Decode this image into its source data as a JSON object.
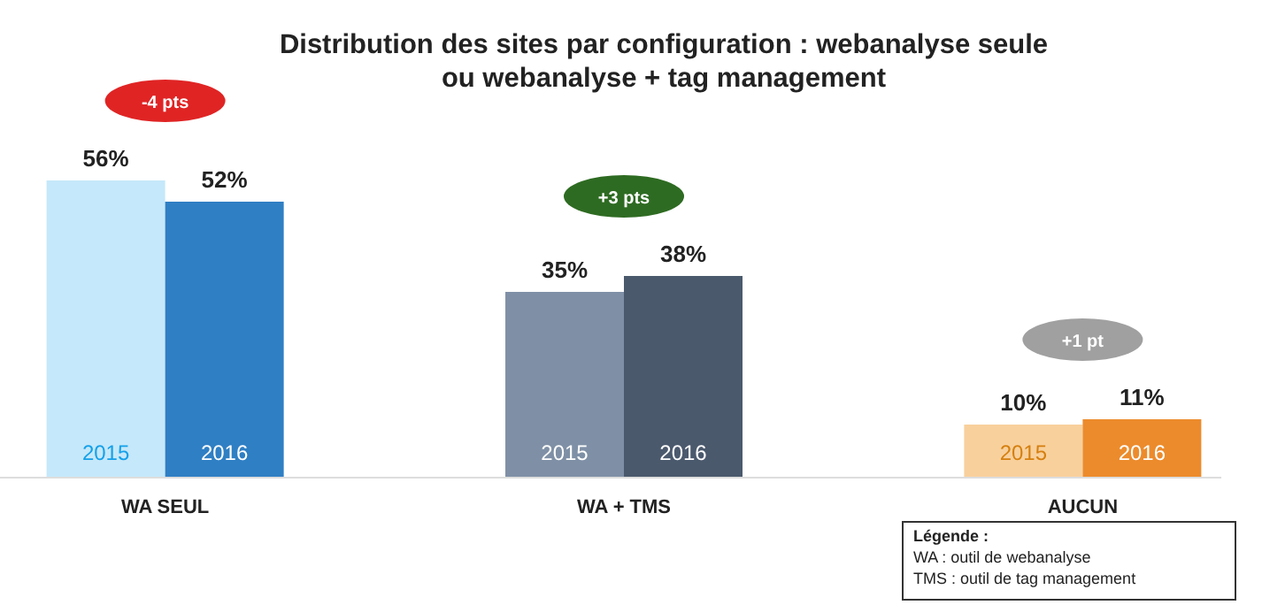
{
  "chart_data": {
    "type": "bar",
    "title": "Distribution des sites par configuration : webanalyse seule\nou webanalyse + tag management",
    "categories": [
      "WA SEUL",
      "WA + TMS",
      "AUCUN"
    ],
    "series": [
      {
        "name": "2015",
        "colors": [
          "#c5e8fa",
          "#7f90a6",
          "#f8d09c"
        ],
        "values": [
          56,
          35,
          10
        ],
        "value_labels": [
          "56%",
          "35%",
          "10%"
        ]
      },
      {
        "name": "2016",
        "colors": [
          "#2f7fc4",
          "#4b596d",
          "#ec8b2c"
        ],
        "values": [
          52,
          38,
          11
        ],
        "value_labels": [
          "52%",
          "38%",
          "11%"
        ]
      }
    ],
    "annotations": [
      "-4 pts",
      "+3 pts",
      "+1 pt",
      "Légende :",
      "WA :  outil de webanalyse",
      "TMS :  outil de tag management"
    ]
  }
}
